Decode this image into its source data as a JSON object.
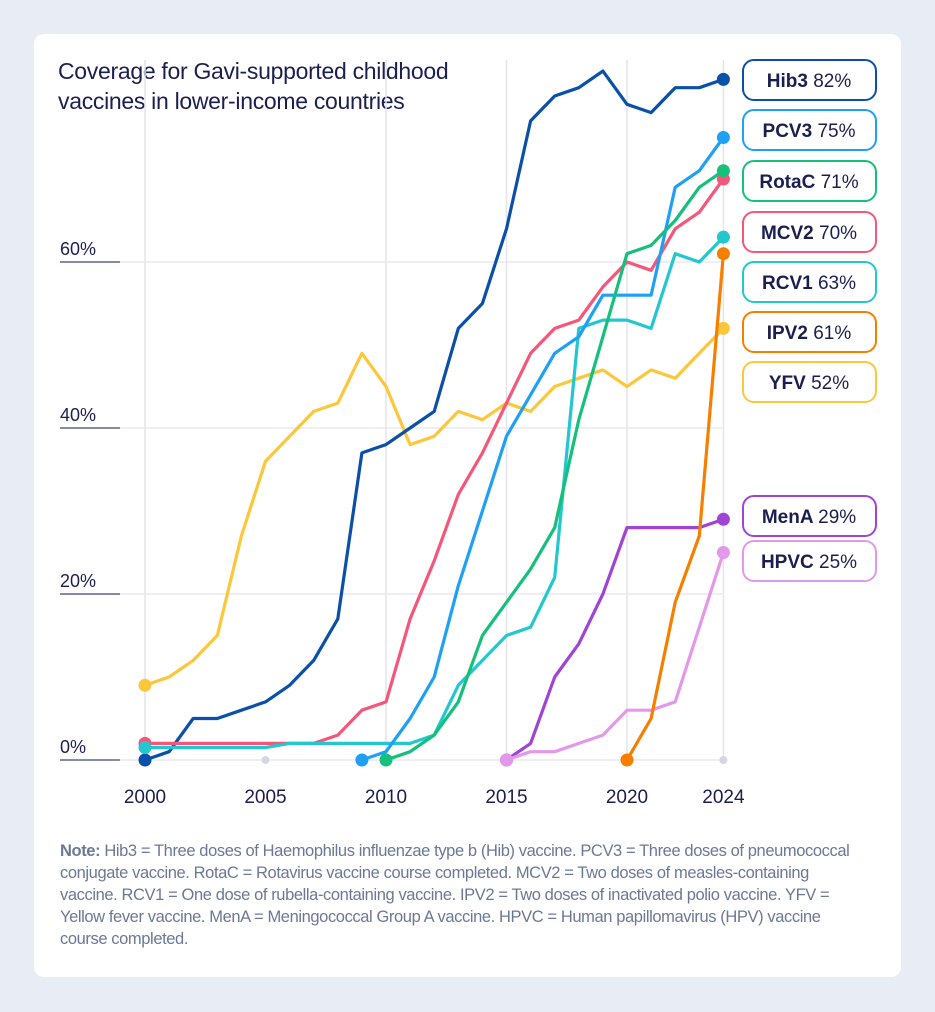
{
  "title": "Coverage for Gavi-supported childhood vaccines in lower-income countries",
  "note": {
    "label": "Note:",
    "text": "Hib3 = Three doses of Haemophilus influenzae type b (Hib) vaccine. PCV3 =  Three doses of pneumococcal conjugate vaccine. RotaC = Rotavirus vaccine course completed. MCV2 = Two doses of measles-containing vaccine. RCV1 = One dose of rubella-containing vaccine. IPV2 = Two doses of inactivated polio vaccine. YFV =  Yellow fever vaccine. MenA = Meningococcal Group A vaccine. HPVC = Human papillomavirus (HPV) vaccine course completed."
  },
  "chart_data": {
    "type": "line",
    "title": "Coverage for Gavi-supported childhood vaccines in lower-income countries",
    "xlabel": "",
    "ylabel": "",
    "xlim": [
      2000,
      2024
    ],
    "ylim": [
      0,
      85
    ],
    "x_ticks": [
      "2000",
      "2005",
      "2010",
      "2015",
      "2020",
      "2024"
    ],
    "y_ticks": [
      "0%",
      "20%",
      "40%",
      "60%"
    ],
    "grid": true,
    "legend": "right (end labels)",
    "series": [
      {
        "name": "YFV",
        "end_label": "52%",
        "color": "#fdc73c",
        "start": 2000,
        "values": [
          9,
          10,
          12,
          15,
          27,
          36,
          39,
          42,
          43,
          49,
          45,
          38,
          39,
          42,
          41,
          43,
          42,
          45,
          46,
          47,
          45,
          47,
          46,
          49,
          52
        ]
      },
      {
        "name": "Hib3",
        "end_label": "82%",
        "color": "#0a4fa8",
        "start": 2000,
        "values": [
          0,
          1,
          5,
          5,
          6,
          7,
          9,
          12,
          17,
          37,
          38,
          40,
          42,
          52,
          55,
          64,
          77,
          80,
          81,
          83,
          79,
          78,
          81,
          81,
          82
        ]
      },
      {
        "name": "MCV2",
        "end_label": "70%",
        "color": "#f4577a",
        "start": 2000,
        "values": [
          2,
          2,
          2,
          2,
          2,
          2,
          2,
          2,
          3,
          6,
          7,
          17,
          24,
          32,
          37,
          43,
          49,
          52,
          53,
          57,
          60,
          59,
          64,
          66,
          70
        ]
      },
      {
        "name": "RCV1",
        "end_label": "63%",
        "color": "#22c7cf",
        "start": 2000,
        "values": [
          1.5,
          1.5,
          1.5,
          1.5,
          1.5,
          1.5,
          2,
          2,
          2,
          2,
          2,
          2,
          3,
          9,
          12,
          15,
          16,
          22,
          52,
          53,
          53,
          52,
          61,
          60,
          63
        ]
      },
      {
        "name": "PCV3",
        "end_label": "75%",
        "color": "#1ea0f5",
        "start": 2009,
        "values": [
          0,
          1,
          5,
          10,
          21,
          30,
          39,
          44,
          49,
          51,
          56,
          56,
          56,
          69,
          71,
          75
        ]
      },
      {
        "name": "RotaC",
        "end_label": "71%",
        "color": "#14c07a",
        "start": 2010,
        "values": [
          0,
          1,
          3,
          7,
          15,
          19,
          23,
          28,
          41,
          51,
          61,
          62,
          65,
          69,
          71
        ]
      },
      {
        "name": "MenA",
        "end_label": "29%",
        "color": "#9f44d3",
        "start": 2015,
        "values": [
          0,
          2,
          10,
          14,
          20,
          28,
          28,
          28,
          28,
          29
        ]
      },
      {
        "name": "HPVC",
        "end_label": "25%",
        "color": "#e498ea",
        "start": 2015,
        "values": [
          0,
          1,
          1,
          2,
          3,
          6,
          6,
          7,
          16,
          25
        ]
      },
      {
        "name": "IPV2",
        "end_label": "61%",
        "color": "#f77f00",
        "start": 2020,
        "values": [
          0,
          5,
          19,
          27,
          61
        ]
      }
    ],
    "label_order": [
      "Hib3",
      "PCV3",
      "RotaC",
      "MCV2",
      "RCV1",
      "IPV2",
      "YFV",
      "MenA",
      "HPVC"
    ]
  }
}
